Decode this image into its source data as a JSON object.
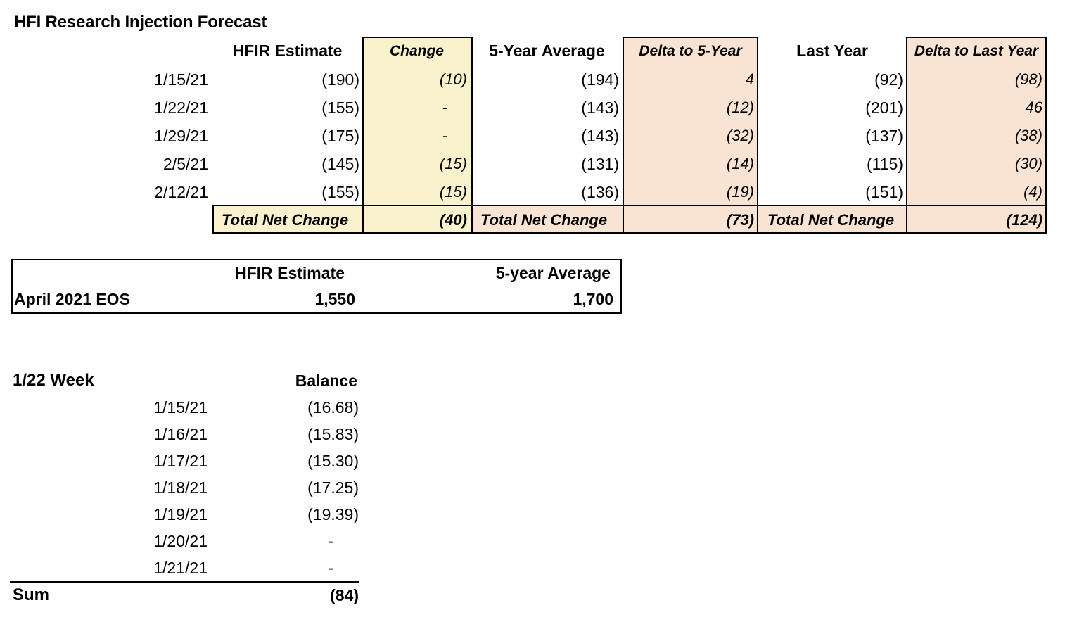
{
  "title": "HFI Research Injection Forecast",
  "colors": {
    "highlight_yellow": "#FAF1CD",
    "highlight_pink": "#F9E4D3",
    "border": "#000000"
  },
  "forecast_table": {
    "headers": {
      "hfir": "HFIR Estimate",
      "change": "Change",
      "avg5": "5-Year Average",
      "delta5": "Delta to 5-Year",
      "last_year": "Last Year",
      "delta_ly": "Delta to Last Year"
    },
    "rows": [
      {
        "date": "1/15/21",
        "hfir": "(190)",
        "change": "(10)",
        "avg5": "(194)",
        "delta5": "4",
        "last_year": "(92)",
        "delta_ly": "(98)"
      },
      {
        "date": "1/22/21",
        "hfir": "(155)",
        "change": "-",
        "avg5": "(143)",
        "delta5": "(12)",
        "last_year": "(201)",
        "delta_ly": "46"
      },
      {
        "date": "1/29/21",
        "hfir": "(175)",
        "change": "-",
        "avg5": "(143)",
        "delta5": "(32)",
        "last_year": "(137)",
        "delta_ly": "(38)"
      },
      {
        "date": "2/5/21",
        "hfir": "(145)",
        "change": "(15)",
        "avg5": "(131)",
        "delta5": "(14)",
        "last_year": "(115)",
        "delta_ly": "(30)"
      },
      {
        "date": "2/12/21",
        "hfir": "(155)",
        "change": "(15)",
        "avg5": "(136)",
        "delta5": "(19)",
        "last_year": "(151)",
        "delta_ly": "(4)"
      }
    ],
    "totals": {
      "label1": "Total Net Change",
      "value1": "(40)",
      "label2": "Total Net Change",
      "value2": "(73)",
      "label3": "Total Net Change",
      "value3": "(124)"
    }
  },
  "eos_table": {
    "headers": {
      "hfir": "HFIR Estimate",
      "avg5": "5-year Average"
    },
    "row": {
      "label": "April 2021 EOS",
      "hfir": "1,550",
      "avg5": "1,700"
    }
  },
  "week_table": {
    "title": "1/22 Week",
    "balance_header": "Balance",
    "rows": [
      {
        "date": "1/15/21",
        "balance": "(16.68)"
      },
      {
        "date": "1/16/21",
        "balance": "(15.83)"
      },
      {
        "date": "1/17/21",
        "balance": "(15.30)"
      },
      {
        "date": "1/18/21",
        "balance": "(17.25)"
      },
      {
        "date": "1/19/21",
        "balance": "(19.39)"
      },
      {
        "date": "1/20/21",
        "balance": "-"
      },
      {
        "date": "1/21/21",
        "balance": "-"
      }
    ],
    "sum_label": "Sum",
    "sum_value": "(84)"
  }
}
